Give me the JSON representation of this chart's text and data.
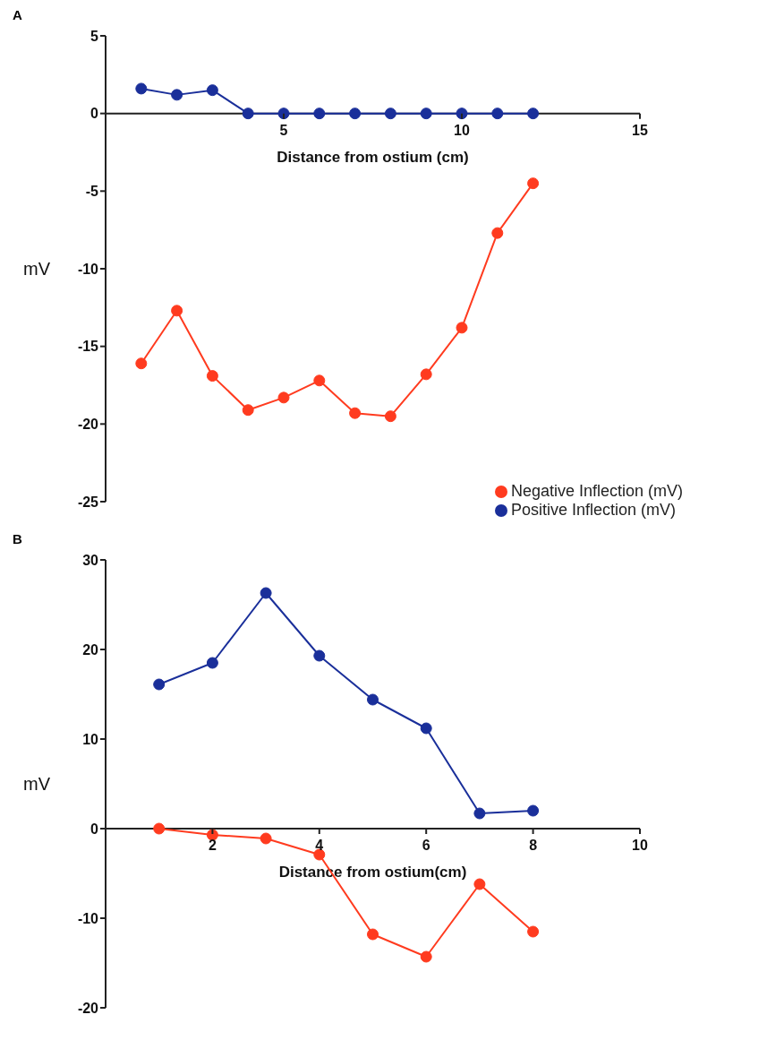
{
  "chart_data": [
    {
      "type": "line",
      "title": "A",
      "xlabel": "Distance from ostium (cm)",
      "ylabel": "mV",
      "x": [
        1,
        2,
        3,
        4,
        5,
        6,
        7,
        8,
        9,
        10,
        11,
        12
      ],
      "xlim": [
        0,
        15
      ],
      "xticks": [
        5,
        10,
        15
      ],
      "ylim": [
        -25,
        5
      ],
      "yticks": [
        5,
        0,
        -5,
        -10,
        -15,
        -20,
        -25
      ],
      "marker": "circle",
      "line_style": "solid",
      "grid": false,
      "legend": "bottom right",
      "series": [
        {
          "name": "Positive Inflection (mV)",
          "color": "#1a2f9a",
          "values": [
            1.6,
            1.2,
            1.5,
            0,
            0,
            0,
            0,
            0,
            0,
            0,
            0,
            0
          ]
        },
        {
          "name": "Negative Inflection (mV)",
          "color": "#ff3b1f",
          "values": [
            -16.1,
            -12.7,
            -16.9,
            -19.1,
            -18.3,
            -17.2,
            -19.3,
            -19.5,
            -16.8,
            -13.8,
            -7.7,
            -4.5
          ]
        }
      ]
    },
    {
      "type": "line",
      "title": "B",
      "xlabel": "Distance from ostium(cm)",
      "ylabel": "mV",
      "x": [
        1,
        2,
        3,
        4,
        5,
        6,
        7,
        8
      ],
      "xlim": [
        0,
        10
      ],
      "xticks": [
        2,
        4,
        6,
        8,
        10
      ],
      "ylim": [
        -20,
        30
      ],
      "yticks": [
        30,
        20,
        10,
        0,
        -10,
        -20
      ],
      "marker": "circle",
      "line_style": "solid",
      "grid": false,
      "legend": false,
      "series": [
        {
          "color": "#1a2f9a",
          "values": [
            16.1,
            18.5,
            26.3,
            19.3,
            14.4,
            11.2,
            1.7,
            2.0
          ]
        },
        {
          "color": "#ff3b1f",
          "values": [
            0,
            -0.7,
            -1.1,
            -2.9,
            -11.8,
            -14.3,
            -6.2,
            -11.5
          ]
        }
      ]
    }
  ]
}
